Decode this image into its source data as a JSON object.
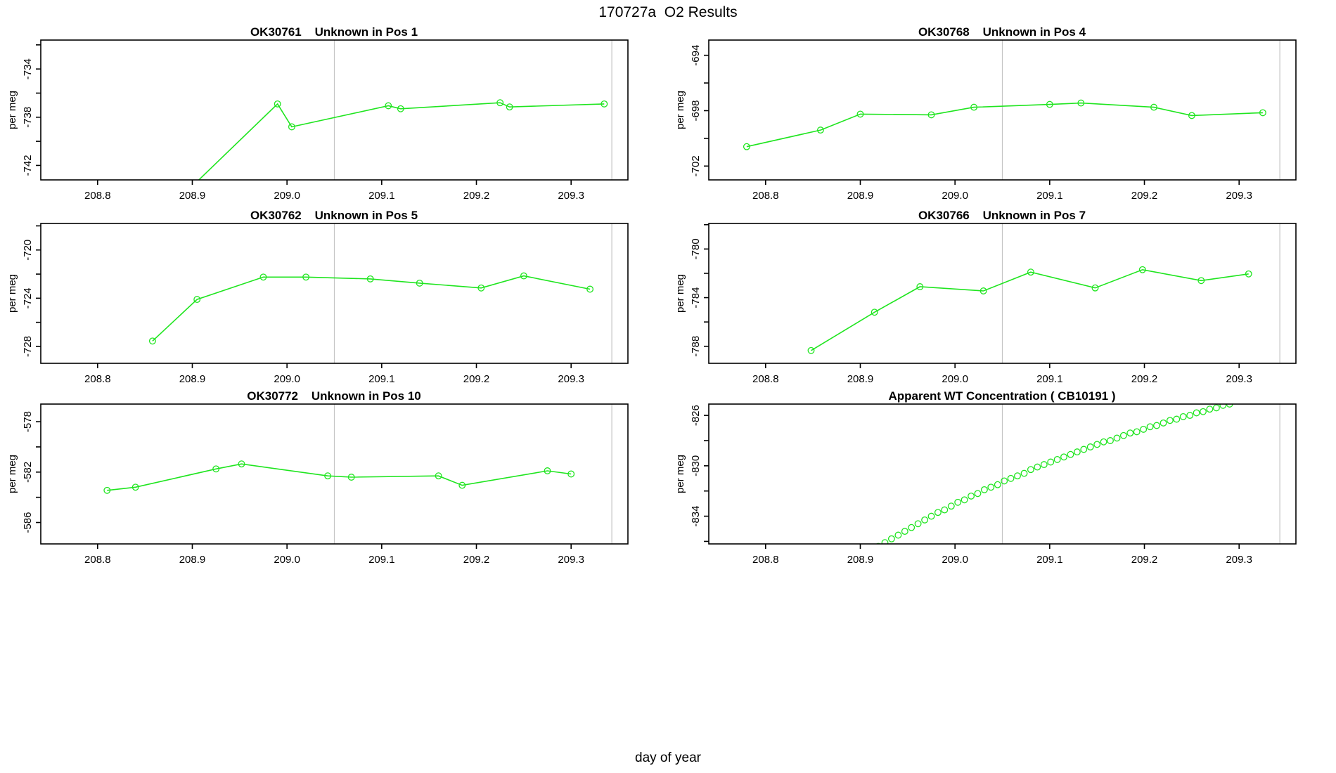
{
  "title": "170727a  O2 Results",
  "xlabel": "day of year",
  "colors": {
    "series": "#1fe51f",
    "vline": "#c4c4c4",
    "axis": "#000000",
    "background": "#ffffff"
  },
  "chart_data": [
    {
      "type": "line",
      "title": "OK30761    Unknown in Pos 1",
      "ylabel": "per meg",
      "xlim": [
        208.74,
        209.36
      ],
      "ylim": [
        -743.2,
        -731.6
      ],
      "xticks": [
        208.8,
        208.9,
        209.0,
        209.1,
        209.2,
        209.3
      ],
      "yticks": [
        -742,
        -740,
        -738,
        -736,
        -734,
        -732
      ],
      "yticks_labeled": [
        -742,
        -738,
        -734
      ],
      "vlines": [
        209.05,
        209.343
      ],
      "points": [
        [
          208.87,
          -746.0
        ],
        [
          208.99,
          -736.9
        ],
        [
          209.005,
          -738.8
        ],
        [
          209.107,
          -737.05
        ],
        [
          209.12,
          -737.3
        ],
        [
          209.225,
          -736.8
        ],
        [
          209.235,
          -737.15
        ],
        [
          209.335,
          -736.9
        ]
      ]
    },
    {
      "type": "line",
      "title": "OK30768    Unknown in Pos 4",
      "ylabel": "per meg",
      "xlim": [
        208.74,
        209.36
      ],
      "ylim": [
        -703.0,
        -692.9
      ],
      "xticks": [
        208.8,
        208.9,
        209.0,
        209.1,
        209.2,
        209.3
      ],
      "yticks": [
        -702,
        -700,
        -698,
        -696,
        -694
      ],
      "yticks_labeled": [
        -702,
        -698,
        -694
      ],
      "vlines": [
        209.05,
        209.343
      ],
      "points": [
        [
          208.78,
          -700.6
        ],
        [
          208.858,
          -699.4
        ],
        [
          208.9,
          -698.25
        ],
        [
          208.975,
          -698.3
        ],
        [
          209.02,
          -697.75
        ],
        [
          209.1,
          -697.55
        ],
        [
          209.133,
          -697.45
        ],
        [
          209.21,
          -697.75
        ],
        [
          209.25,
          -698.35
        ],
        [
          209.325,
          -698.15
        ]
      ]
    },
    {
      "type": "line",
      "title": "OK30762    Unknown in Pos 5",
      "ylabel": "per meg",
      "xlim": [
        208.74,
        209.36
      ],
      "ylim": [
        -729.4,
        -717.8
      ],
      "xticks": [
        208.8,
        208.9,
        209.0,
        209.1,
        209.2,
        209.3
      ],
      "yticks": [
        -728,
        -726,
        -724,
        -722,
        -720,
        -718
      ],
      "yticks_labeled": [
        -728,
        -724,
        -720
      ],
      "vlines": [
        209.05,
        209.343
      ],
      "points": [
        [
          208.858,
          -727.55
        ],
        [
          208.905,
          -724.1
        ],
        [
          208.975,
          -722.25
        ],
        [
          209.02,
          -722.25
        ],
        [
          209.088,
          -722.4
        ],
        [
          209.14,
          -722.75
        ],
        [
          209.205,
          -723.15
        ],
        [
          209.25,
          -722.15
        ],
        [
          209.32,
          -723.25
        ]
      ]
    },
    {
      "type": "line",
      "title": "OK30766    Unknown in Pos 7",
      "ylabel": "per meg",
      "xlim": [
        208.74,
        209.36
      ],
      "ylim": [
        -789.4,
        -777.9
      ],
      "xticks": [
        208.8,
        208.9,
        209.0,
        209.1,
        209.2,
        209.3
      ],
      "yticks": [
        -788,
        -786,
        -784,
        -782,
        -780,
        -778
      ],
      "yticks_labeled": [
        -788,
        -784,
        -780
      ],
      "vlines": [
        209.05,
        209.343
      ],
      "points": [
        [
          208.848,
          -788.35
        ],
        [
          208.915,
          -785.2
        ],
        [
          208.963,
          -783.1
        ],
        [
          209.03,
          -783.45
        ],
        [
          209.08,
          -781.9
        ],
        [
          209.148,
          -783.2
        ],
        [
          209.198,
          -781.7
        ],
        [
          209.26,
          -782.6
        ],
        [
          209.31,
          -782.05
        ]
      ]
    },
    {
      "type": "line",
      "title": "OK30772    Unknown in Pos 10",
      "ylabel": "per meg",
      "xlim": [
        208.74,
        209.36
      ],
      "ylim": [
        -587.7,
        -576.6
      ],
      "xticks": [
        208.8,
        208.9,
        209.0,
        209.1,
        209.2,
        209.3
      ],
      "yticks": [
        -586,
        -584,
        -582,
        -580,
        -578
      ],
      "yticks_labeled": [
        -586,
        -582,
        -578
      ],
      "vlines": [
        209.05,
        209.343
      ],
      "points": [
        [
          208.81,
          -583.45
        ],
        [
          208.84,
          -583.2
        ],
        [
          208.925,
          -581.75
        ],
        [
          208.952,
          -581.35
        ],
        [
          209.043,
          -582.3
        ],
        [
          209.068,
          -582.4
        ],
        [
          209.16,
          -582.3
        ],
        [
          209.185,
          -583.05
        ],
        [
          209.275,
          -581.9
        ],
        [
          209.3,
          -582.15
        ]
      ]
    },
    {
      "type": "scatter",
      "title": "Apparent WT Concentration ( CB10191 )",
      "ylabel": "per meg",
      "xlim": [
        208.74,
        209.36
      ],
      "ylim": [
        -836.2,
        -825.1
      ],
      "xticks": [
        208.8,
        208.9,
        209.0,
        209.1,
        209.2,
        209.3
      ],
      "yticks": [
        -836,
        -834,
        -832,
        -830,
        -828,
        -826
      ],
      "yticks_labeled": [
        -834,
        -830,
        -826
      ],
      "vlines": [
        209.05,
        209.343
      ],
      "points": [
        [
          208.912,
          -836.7
        ],
        [
          208.919,
          -836.4
        ],
        [
          208.926,
          -836.1
        ],
        [
          208.933,
          -835.8
        ],
        [
          208.94,
          -835.5
        ],
        [
          208.947,
          -835.2
        ],
        [
          208.954,
          -834.9
        ],
        [
          208.961,
          -834.6
        ],
        [
          208.968,
          -834.3
        ],
        [
          208.975,
          -834.0
        ],
        [
          208.982,
          -833.7
        ],
        [
          208.989,
          -833.5
        ],
        [
          208.996,
          -833.2
        ],
        [
          209.003,
          -832.9
        ],
        [
          209.01,
          -832.7
        ],
        [
          209.017,
          -832.4
        ],
        [
          209.024,
          -832.2
        ],
        [
          209.031,
          -831.9
        ],
        [
          209.038,
          -831.7
        ],
        [
          209.045,
          -831.5
        ],
        [
          209.052,
          -831.2
        ],
        [
          209.059,
          -831.0
        ],
        [
          209.066,
          -830.8
        ],
        [
          209.073,
          -830.6
        ],
        [
          209.08,
          -830.3
        ],
        [
          209.087,
          -830.1
        ],
        [
          209.094,
          -829.9
        ],
        [
          209.101,
          -829.7
        ],
        [
          209.108,
          -829.5
        ],
        [
          209.115,
          -829.3
        ],
        [
          209.122,
          -829.1
        ],
        [
          209.129,
          -828.9
        ],
        [
          209.136,
          -828.7
        ],
        [
          209.143,
          -828.5
        ],
        [
          209.15,
          -828.3
        ],
        [
          209.157,
          -828.1
        ],
        [
          209.164,
          -828.0
        ],
        [
          209.171,
          -827.8
        ],
        [
          209.178,
          -827.6
        ],
        [
          209.185,
          -827.4
        ],
        [
          209.192,
          -827.3
        ],
        [
          209.199,
          -827.1
        ],
        [
          209.206,
          -826.9
        ],
        [
          209.213,
          -826.8
        ],
        [
          209.22,
          -826.6
        ],
        [
          209.227,
          -826.4
        ],
        [
          209.234,
          -826.3
        ],
        [
          209.241,
          -826.1
        ],
        [
          209.248,
          -826.0
        ],
        [
          209.255,
          -825.8
        ],
        [
          209.262,
          -825.7
        ],
        [
          209.269,
          -825.5
        ],
        [
          209.276,
          -825.4
        ],
        [
          209.283,
          -825.2
        ],
        [
          209.29,
          -825.1
        ]
      ]
    }
  ]
}
